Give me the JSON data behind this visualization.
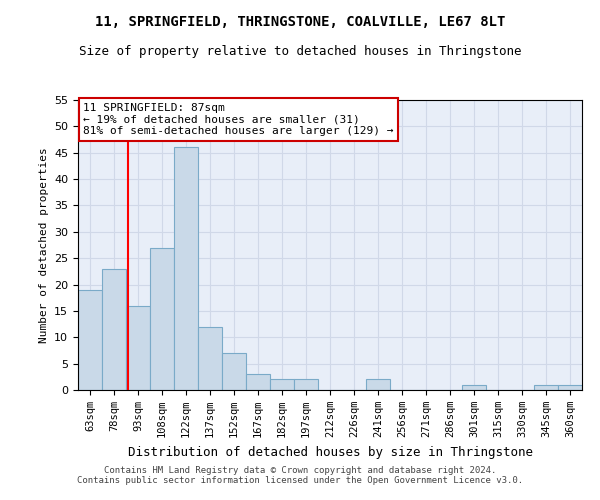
{
  "title1": "11, SPRINGFIELD, THRINGSTONE, COALVILLE, LE67 8LT",
  "title2": "Size of property relative to detached houses in Thringstone",
  "xlabel": "Distribution of detached houses by size in Thringstone",
  "ylabel": "Number of detached properties",
  "categories": [
    "63sqm",
    "78sqm",
    "93sqm",
    "108sqm",
    "122sqm",
    "137sqm",
    "152sqm",
    "167sqm",
    "182sqm",
    "197sqm",
    "212sqm",
    "226sqm",
    "241sqm",
    "256sqm",
    "271sqm",
    "286sqm",
    "301sqm",
    "315sqm",
    "330sqm",
    "345sqm",
    "360sqm"
  ],
  "values": [
    19,
    23,
    16,
    27,
    46,
    12,
    7,
    3,
    2,
    2,
    0,
    0,
    2,
    0,
    0,
    0,
    1,
    0,
    0,
    1,
    1
  ],
  "bar_color": "#c9d9e8",
  "bar_edge_color": "#7aaac8",
  "ylim": [
    0,
    55
  ],
  "yticks": [
    0,
    5,
    10,
    15,
    20,
    25,
    30,
    35,
    40,
    45,
    50,
    55
  ],
  "red_line_x": 1.6,
  "annotation_text": "11 SPRINGFIELD: 87sqm\n← 19% of detached houses are smaller (31)\n81% of semi-detached houses are larger (129) →",
  "annotation_box_color": "#ffffff",
  "annotation_box_edge": "#cc0000",
  "footer1": "Contains HM Land Registry data © Crown copyright and database right 2024.",
  "footer2": "Contains public sector information licensed under the Open Government Licence v3.0.",
  "grid_color": "#d0d8e8",
  "bg_color": "#e8eef8",
  "title1_fontsize": 10,
  "title2_fontsize": 9,
  "ylabel_fontsize": 8,
  "xlabel_fontsize": 9
}
